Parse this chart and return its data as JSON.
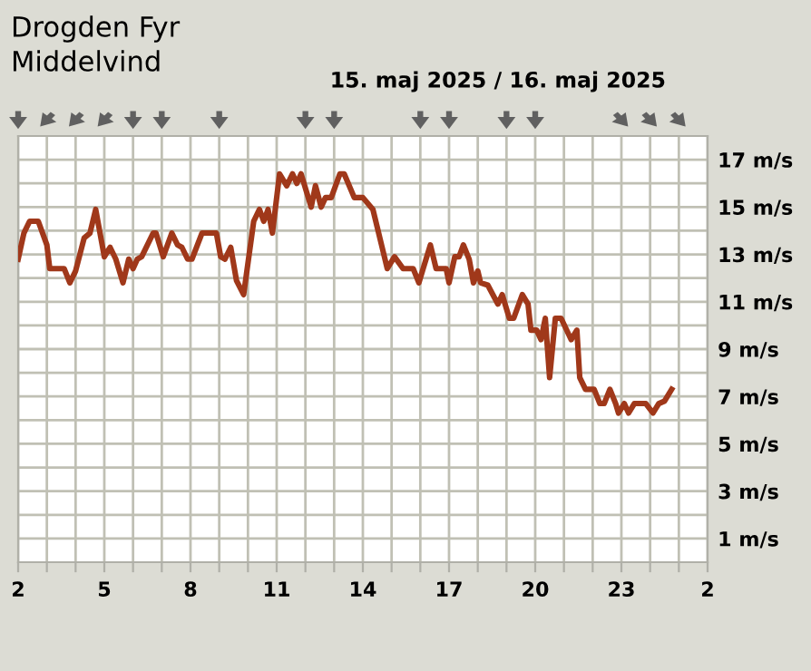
{
  "chart_data": {
    "type": "line",
    "title": "Drogden Fyr",
    "subtitle": "Middelvind",
    "annotations": [
      "15. maj 2025 / 16. maj 2025"
    ],
    "x": [
      "2025-05-15T02:00",
      "2025-05-15T02:12",
      "2025-05-15T02:24",
      "2025-05-15T02:42",
      "2025-05-15T03:00",
      "2025-05-15T03:06",
      "2025-05-15T03:36",
      "2025-05-15T03:48",
      "2025-05-15T04:00",
      "2025-05-15T04:18",
      "2025-05-15T04:30",
      "2025-05-15T04:42",
      "2025-05-15T05:00",
      "2025-05-15T05:12",
      "2025-05-15T05:24",
      "2025-05-15T05:39",
      "2025-05-15T05:51",
      "2025-05-15T06:00",
      "2025-05-15T06:09",
      "2025-05-15T06:18",
      "2025-05-15T06:42",
      "2025-05-15T06:48",
      "2025-05-15T07:03",
      "2025-05-15T07:21",
      "2025-05-15T07:33",
      "2025-05-15T07:42",
      "2025-05-15T07:54",
      "2025-05-15T08:03",
      "2025-05-15T08:24",
      "2025-05-15T08:54",
      "2025-05-15T09:03",
      "2025-05-15T09:12",
      "2025-05-15T09:24",
      "2025-05-15T09:36",
      "2025-05-15T09:51",
      "2025-05-15T10:12",
      "2025-05-15T10:24",
      "2025-05-15T10:33",
      "2025-05-15T10:42",
      "2025-05-15T10:51",
      "2025-05-15T11:06",
      "2025-05-15T11:21",
      "2025-05-15T11:33",
      "2025-05-15T11:42",
      "2025-05-15T11:51",
      "2025-05-15T12:12",
      "2025-05-15T12:21",
      "2025-05-15T12:33",
      "2025-05-15T12:42",
      "2025-05-15T12:54",
      "2025-05-15T13:12",
      "2025-05-15T13:21",
      "2025-05-15T13:42",
      "2025-05-15T14:00",
      "2025-05-15T14:21",
      "2025-05-15T14:39",
      "2025-05-15T14:51",
      "2025-05-15T15:06",
      "2025-05-15T15:24",
      "2025-05-15T15:45",
      "2025-05-15T15:57",
      "2025-05-15T16:06",
      "2025-05-15T16:21",
      "2025-05-15T16:33",
      "2025-05-15T16:54",
      "2025-05-15T17:00",
      "2025-05-15T17:12",
      "2025-05-15T17:21",
      "2025-05-15T17:30",
      "2025-05-15T17:42",
      "2025-05-15T17:51",
      "2025-05-15T18:00",
      "2025-05-15T18:06",
      "2025-05-15T18:21",
      "2025-05-15T18:42",
      "2025-05-15T18:51",
      "2025-05-15T19:06",
      "2025-05-15T19:15",
      "2025-05-15T19:33",
      "2025-05-15T19:45",
      "2025-05-15T19:51",
      "2025-05-15T20:03",
      "2025-05-15T20:12",
      "2025-05-15T20:21",
      "2025-05-15T20:30",
      "2025-05-15T20:42",
      "2025-05-15T20:54",
      "2025-05-15T21:15",
      "2025-05-15T21:27",
      "2025-05-15T21:33",
      "2025-05-15T21:45",
      "2025-05-15T22:03",
      "2025-05-15T22:15",
      "2025-05-15T22:24",
      "2025-05-15T22:36",
      "2025-05-15T22:48",
      "2025-05-15T22:54",
      "2025-05-15T23:06",
      "2025-05-15T23:15",
      "2025-05-15T23:27",
      "2025-05-15T23:51",
      "2025-05-16T00:06",
      "2025-05-16T00:18",
      "2025-05-16T00:30",
      "2025-05-16T00:45"
    ],
    "series": [
      {
        "color": "#a0381a",
        "values": [
          12.8,
          13.9,
          14.4,
          14.4,
          13.4,
          12.4,
          12.4,
          11.8,
          12.3,
          13.7,
          13.9,
          14.9,
          12.9,
          13.3,
          12.8,
          11.8,
          12.8,
          12.4,
          12.8,
          12.9,
          13.9,
          13.9,
          12.9,
          13.9,
          13.4,
          13.3,
          12.8,
          12.8,
          13.9,
          13.9,
          12.9,
          12.8,
          13.3,
          11.9,
          11.3,
          14.4,
          14.9,
          14.4,
          14.9,
          13.9,
          16.4,
          15.9,
          16.4,
          16.0,
          16.4,
          15.0,
          15.9,
          15.0,
          15.4,
          15.4,
          16.4,
          16.4,
          15.4,
          15.4,
          14.9,
          13.4,
          12.4,
          12.9,
          12.4,
          12.4,
          11.8,
          12.4,
          13.4,
          12.4,
          12.4,
          11.8,
          12.9,
          12.9,
          13.4,
          12.8,
          11.8,
          12.3,
          11.8,
          11.7,
          10.9,
          11.3,
          10.3,
          10.3,
          11.3,
          10.9,
          9.8,
          9.8,
          9.4,
          10.3,
          7.8,
          10.3,
          10.3,
          9.4,
          9.8,
          7.8,
          7.3,
          7.3,
          6.7,
          6.7,
          7.3,
          6.7,
          6.3,
          6.7,
          6.3,
          6.7,
          6.7,
          6.3,
          6.7,
          6.8,
          7.3
        ]
      }
    ],
    "xlim": [
      "2025-05-15T02:00",
      "2025-05-16T02:00"
    ],
    "ylim": [
      0,
      18
    ],
    "xticks": [
      {
        "value": "2025-05-15T02:00",
        "label": "2"
      },
      {
        "value": "2025-05-15T03:00",
        "label": null
      },
      {
        "value": "2025-05-15T04:00",
        "label": null
      },
      {
        "value": "2025-05-15T05:00",
        "label": "5"
      },
      {
        "value": "2025-05-15T06:00",
        "label": null
      },
      {
        "value": "2025-05-15T07:00",
        "label": null
      },
      {
        "value": "2025-05-15T08:00",
        "label": "8"
      },
      {
        "value": "2025-05-15T09:00",
        "label": null
      },
      {
        "value": "2025-05-15T10:00",
        "label": null
      },
      {
        "value": "2025-05-15T11:00",
        "label": "11"
      },
      {
        "value": "2025-05-15T12:00",
        "label": null
      },
      {
        "value": "2025-05-15T13:00",
        "label": null
      },
      {
        "value": "2025-05-15T14:00",
        "label": "14"
      },
      {
        "value": "2025-05-15T15:00",
        "label": null
      },
      {
        "value": "2025-05-15T16:00",
        "label": null
      },
      {
        "value": "2025-05-15T17:00",
        "label": "17"
      },
      {
        "value": "2025-05-15T18:00",
        "label": null
      },
      {
        "value": "2025-05-15T19:00",
        "label": null
      },
      {
        "value": "2025-05-15T20:00",
        "label": "20"
      },
      {
        "value": "2025-05-15T21:00",
        "label": null
      },
      {
        "value": "2025-05-15T22:00",
        "label": null
      },
      {
        "value": "2025-05-15T23:00",
        "label": "23"
      },
      {
        "value": "2025-05-16T00:00",
        "label": null
      },
      {
        "value": "2025-05-16T01:00",
        "label": null
      },
      {
        "value": "2025-05-16T02:00",
        "label": "2"
      }
    ],
    "yticks": [
      {
        "value": 1,
        "label": "1 m/s"
      },
      {
        "value": 2,
        "label": null
      },
      {
        "value": 3,
        "label": "3 m/s"
      },
      {
        "value": 4,
        "label": null
      },
      {
        "value": 5,
        "label": "5 m/s"
      },
      {
        "value": 6,
        "label": null
      },
      {
        "value": 7,
        "label": "7 m/s"
      },
      {
        "value": 8,
        "label": null
      },
      {
        "value": 9,
        "label": "9 m/s"
      },
      {
        "value": 10,
        "label": null
      },
      {
        "value": 11,
        "label": "11 m/s"
      },
      {
        "value": 12,
        "label": null
      },
      {
        "value": 13,
        "label": "13 m/s"
      },
      {
        "value": 14,
        "label": null
      },
      {
        "value": 15,
        "label": "15 m/s"
      },
      {
        "value": 16,
        "label": null
      },
      {
        "value": 17,
        "label": "17 m/s"
      }
    ],
    "grid": true,
    "legend": false,
    "marker": "none",
    "line_style": "solid"
  }
}
